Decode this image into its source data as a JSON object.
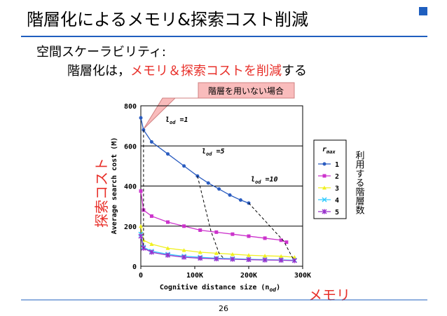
{
  "slide": {
    "title": "階層化によるメモリ&探索コスト削減",
    "bullet": "空間スケーラビリティ:",
    "line2": [
      "階層化は，",
      "メモリ＆探索コストを削減",
      "する"
    ],
    "callout": "階層を用いない場合",
    "y_side": "探索コスト",
    "x_side": "メモリ",
    "legend_side": "利用する階層数",
    "page": "26"
  },
  "chart_data": {
    "type": "line",
    "y_label": "Average search cost (M)",
    "x_label": [
      "Cognitive distance size (n",
      "od",
      ")"
    ],
    "xlim": [
      0,
      300000
    ],
    "ylim": [
      0,
      800
    ],
    "xticks": [
      0,
      {
        "value": 100000,
        "label": "100K"
      },
      {
        "value": 200000,
        "label": "200K"
      },
      {
        "value": 300000,
        "label": "300K"
      }
    ],
    "yticks": [
      0,
      200,
      400,
      600,
      800
    ],
    "grid": true,
    "legend_title": [
      "r",
      "max"
    ],
    "series": [
      {
        "name": "1",
        "color": "#2a5cc0",
        "marker": "circle",
        "x": [
          0,
          5000,
          20000,
          50000,
          80000,
          105000,
          125000,
          145000,
          165000,
          185000,
          200000
        ],
        "values": [
          740,
          680,
          620,
          560,
          500,
          450,
          415,
          385,
          355,
          330,
          315
        ]
      },
      {
        "name": "2",
        "color": "#cc33cc",
        "marker": "square",
        "x": [
          0,
          5000,
          20000,
          50000,
          80000,
          110000,
          140000,
          170000,
          200000,
          230000,
          260000,
          270000
        ],
        "values": [
          375,
          280,
          250,
          220,
          200,
          180,
          170,
          160,
          150,
          140,
          130,
          120
        ]
      },
      {
        "name": "3",
        "color": "#f0f020",
        "marker": "triangle",
        "x": [
          0,
          5000,
          20000,
          50000,
          80000,
          110000,
          140000,
          170000,
          200000,
          230000,
          260000,
          285000
        ],
        "values": [
          200,
          130,
          110,
          90,
          80,
          70,
          65,
          60,
          55,
          52,
          50,
          45
        ]
      },
      {
        "name": "4",
        "color": "#33ccff",
        "marker": "x",
        "x": [
          0,
          5000,
          20000,
          50000,
          80000,
          110000,
          140000,
          170000,
          200000,
          230000,
          260000,
          285000
        ],
        "values": [
          160,
          95,
          75,
          60,
          50,
          45,
          40,
          38,
          35,
          33,
          32,
          30
        ]
      },
      {
        "name": "5",
        "color": "#9933cc",
        "marker": "star",
        "x": [
          0,
          5000,
          20000,
          50000,
          80000,
          110000,
          140000,
          170000,
          200000,
          230000,
          260000,
          285000
        ],
        "values": [
          150,
          90,
          70,
          55,
          45,
          40,
          37,
          35,
          33,
          31,
          30,
          28
        ]
      }
    ],
    "curves": [
      {
        "label": [
          "l",
          "od",
          " =1"
        ],
        "x": [
          5000,
          5000,
          5000,
          5000,
          5000
        ],
        "values": [
          680,
          280,
          130,
          95,
          90
        ]
      },
      {
        "label": [
          "l",
          "od",
          " =5"
        ],
        "x": [
          105000,
          130000,
          145000,
          155000
        ],
        "values": [
          450,
          175,
          65,
          35
        ]
      },
      {
        "label": [
          "l",
          "od",
          " =10"
        ],
        "x": [
          200000,
          265000,
          280000,
          285000
        ],
        "values": [
          315,
          125,
          48,
          30
        ]
      }
    ]
  }
}
